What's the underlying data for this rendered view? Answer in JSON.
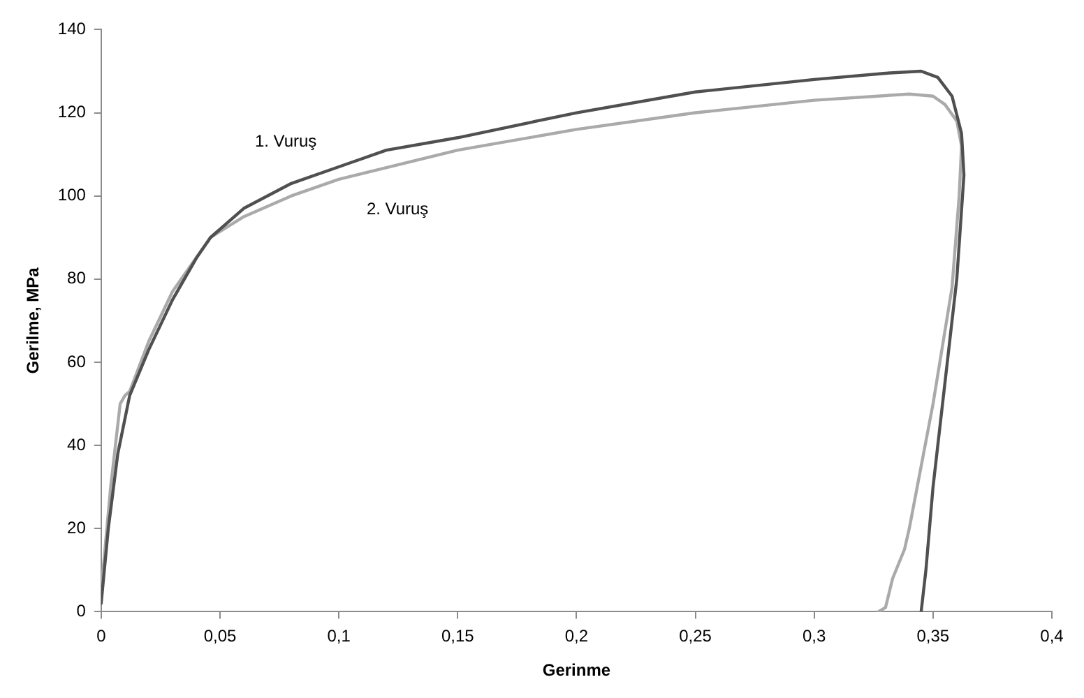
{
  "chart_data": {
    "type": "line",
    "xlabel": "Gerinme",
    "ylabel": "Gerilme, MPa",
    "xlim": [
      0,
      0.4
    ],
    "ylim": [
      0,
      140
    ],
    "xticks": [
      0,
      {
        "value": 0.05,
        "label": "0,05"
      },
      {
        "value": 0.1,
        "label": "0,1"
      },
      {
        "value": 0.15,
        "label": "0,15"
      },
      {
        "value": 0.2,
        "label": "0,2"
      },
      {
        "value": 0.25,
        "label": "0,25"
      },
      {
        "value": 0.3,
        "label": "0,3"
      },
      {
        "value": 0.35,
        "label": "0,35"
      },
      {
        "value": 0.4,
        "label": "0,4"
      }
    ],
    "yticks": [
      0,
      20,
      40,
      60,
      80,
      100,
      120,
      140
    ],
    "grid": false,
    "legend": false,
    "marker": "none",
    "line_style": "solid",
    "series": [
      {
        "name": "1. Vuruş",
        "color": "#505050",
        "x": [
          0,
          0.003,
          0.007,
          0.012,
          0.02,
          0.03,
          0.04,
          0.046,
          0.06,
          0.08,
          0.1,
          0.12,
          0.15,
          0.2,
          0.25,
          0.3,
          0.33,
          0.345,
          0.352,
          0.358,
          0.362,
          0.363,
          0.36,
          0.355,
          0.35,
          0.347,
          0.345
        ],
        "values": [
          2,
          20,
          38,
          52,
          63,
          75,
          85,
          90,
          97,
          103,
          107,
          111,
          114,
          120,
          125,
          128,
          129.5,
          130,
          128.5,
          124,
          115,
          105,
          80,
          55,
          30,
          10,
          0
        ]
      },
      {
        "name": "2. Vuruş",
        "color": "#aaaaaa",
        "x": [
          0,
          0.004,
          0.008,
          0.01,
          0.012,
          0.02,
          0.03,
          0.046,
          0.06,
          0.08,
          0.1,
          0.15,
          0.2,
          0.25,
          0.3,
          0.34,
          0.35,
          0.355,
          0.36,
          0.362,
          0.361,
          0.358,
          0.35,
          0.34,
          0.338,
          0.333,
          0.33,
          0.327
        ],
        "values": [
          5,
          30,
          50,
          52,
          53,
          65,
          77,
          90,
          95,
          100,
          104,
          111,
          116,
          120,
          123,
          124.5,
          124,
          122,
          118,
          112,
          100,
          78,
          50,
          20,
          15,
          8,
          1,
          0
        ]
      }
    ]
  }
}
